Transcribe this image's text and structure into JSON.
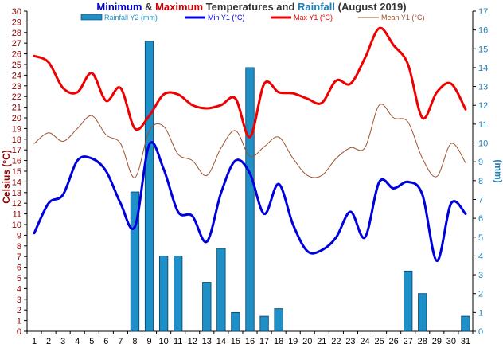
{
  "chart_data": {
    "type": "bar",
    "title_parts": [
      {
        "text": "Minimum",
        "color": "#0000CC"
      },
      {
        "text": " & ",
        "color": "#333333"
      },
      {
        "text": "Maximum",
        "color": "#CC0000"
      },
      {
        "text": " Temperatures and ",
        "color": "#333333"
      },
      {
        "text": "Rainfall",
        "color": "#1F7FB6"
      },
      {
        "text": " (August 2019)",
        "color": "#333333"
      }
    ],
    "ylabel_left": "Celsius (°C)",
    "ylabel_right": "(mm)",
    "ylim_left": [
      0,
      30
    ],
    "ylim_right": [
      0,
      17
    ],
    "yticks_left": [
      0,
      1,
      2,
      3,
      4,
      5,
      6,
      7,
      8,
      9,
      10,
      11,
      12,
      13,
      14,
      15,
      16,
      17,
      18,
      19,
      20,
      21,
      22,
      23,
      24,
      25,
      26,
      27,
      28,
      29,
      30
    ],
    "yticks_right": [
      0,
      1,
      2,
      3,
      4,
      5,
      6,
      7,
      8,
      9,
      10,
      11,
      12,
      13,
      14,
      15,
      16,
      17
    ],
    "categories": [
      "1",
      "2",
      "3",
      "4",
      "5",
      "6",
      "7",
      "8",
      "9",
      "10",
      "11",
      "12",
      "13",
      "14",
      "15",
      "16",
      "17",
      "18",
      "19",
      "20",
      "21",
      "22",
      "23",
      "24",
      "25",
      "26",
      "27",
      "28",
      "29",
      "30",
      "31"
    ],
    "grid": false,
    "legend_position": "top",
    "series": [
      {
        "name": "Rainfall Y2 (mm)",
        "type": "bar",
        "axis": "right",
        "color": "#1E90C8",
        "values": [
          0,
          0,
          0,
          0,
          0,
          0,
          0,
          7.4,
          15.4,
          4.0,
          4.0,
          0,
          2.6,
          4.4,
          1.0,
          14.0,
          0.8,
          1.2,
          0,
          0,
          0,
          0,
          0,
          0,
          0,
          0,
          3.2,
          2.0,
          0,
          0,
          0.8
        ]
      },
      {
        "name": "Min Y1 (°C)",
        "type": "line",
        "axis": "left",
        "color": "#0000DD",
        "values": [
          9.2,
          12.0,
          12.8,
          16.0,
          16.2,
          15.0,
          12.0,
          9.8,
          17.5,
          15.2,
          11.2,
          10.8,
          8.4,
          13.0,
          16.0,
          14.8,
          11.0,
          13.8,
          10.0,
          7.5,
          7.6,
          8.8,
          11.2,
          8.8,
          14.0,
          13.4,
          14.0,
          12.8,
          6.6,
          12.0,
          11.0
        ]
      },
      {
        "name": "Max Y1 (°C)",
        "type": "line",
        "axis": "left",
        "color": "#EE0000",
        "values": [
          25.8,
          25.2,
          22.8,
          22.4,
          24.2,
          21.6,
          22.8,
          19.0,
          20.2,
          22.2,
          22.2,
          21.2,
          20.9,
          21.2,
          21.8,
          18.2,
          23.2,
          22.4,
          22.3,
          21.8,
          21.4,
          23.5,
          23.2,
          25.6,
          28.4,
          26.8,
          25.0,
          20.0,
          22.4,
          23.2,
          20.8
        ]
      },
      {
        "name": "Mean Y1 (°C)",
        "type": "line",
        "axis": "left",
        "color": "#A0522D",
        "values": [
          17.6,
          18.6,
          17.8,
          19.0,
          20.2,
          18.4,
          17.6,
          14.4,
          18.8,
          19.2,
          16.6,
          16.0,
          14.6,
          17.2,
          18.8,
          16.4,
          17.3,
          18.2,
          16.2,
          14.6,
          14.6,
          16.2,
          17.2,
          17.2,
          21.2,
          20.0,
          19.6,
          16.2,
          14.5,
          17.6,
          15.8
        ]
      }
    ]
  }
}
